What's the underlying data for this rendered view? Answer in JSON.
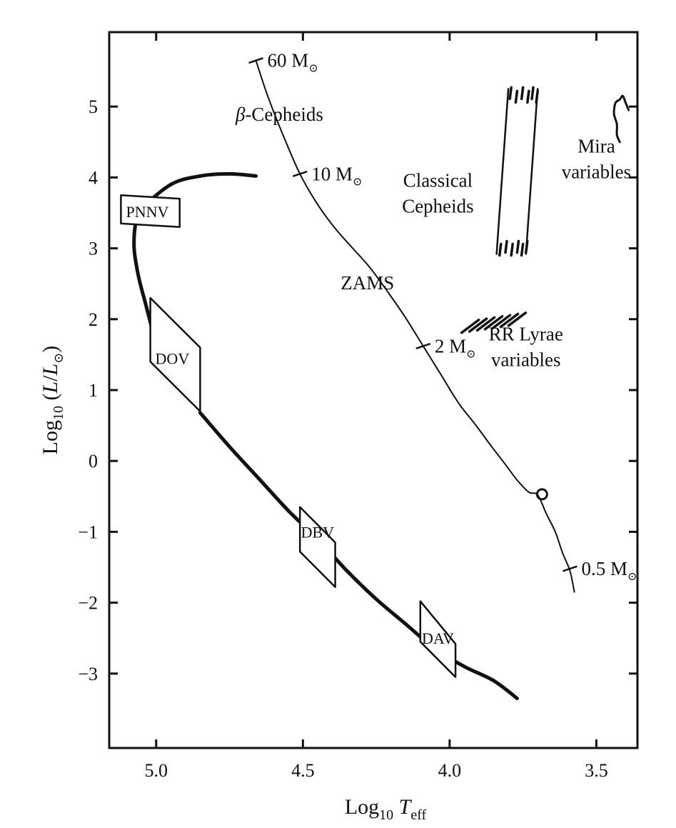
{
  "chart_data": {
    "type": "line",
    "title": "",
    "xlabel": {
      "base": "Log",
      "sub": "10",
      "var": "T",
      "varsub": "eff"
    },
    "ylabel": {
      "base": "Log",
      "sub": "10",
      "open": " (",
      "var": "L",
      "slash": "/",
      "var2": "L",
      "sun": "⊙",
      "close": ")"
    },
    "xlim": [
      5.16,
      3.36
    ],
    "ylim": [
      -4.05,
      6.05
    ],
    "x_ticks": [
      {
        "value": 5.0,
        "label": "5.0"
      },
      {
        "value": 4.5,
        "label": "4.5"
      },
      {
        "value": 4.0,
        "label": "4.0"
      },
      {
        "value": 3.5,
        "label": "3.5"
      }
    ],
    "y_ticks": [
      {
        "value": 5,
        "label": "5"
      },
      {
        "value": 4,
        "label": "4"
      },
      {
        "value": 3,
        "label": "3"
      },
      {
        "value": 2,
        "label": "2"
      },
      {
        "value": 1,
        "label": "1"
      },
      {
        "value": 0,
        "label": "0"
      },
      {
        "value": -1,
        "label": "−1"
      },
      {
        "value": -2,
        "label": "−2"
      },
      {
        "value": -3,
        "label": "−3"
      }
    ],
    "grid": false,
    "series": [
      {
        "id": "zams",
        "x": [
          4.66,
          4.62,
          4.57,
          4.51,
          4.45,
          4.39,
          4.33,
          4.27,
          4.21,
          4.15,
          4.09,
          4.03,
          3.97,
          3.91,
          3.86,
          3.81,
          3.77,
          3.73,
          3.7,
          3.67,
          3.64,
          3.615,
          3.59,
          3.575
        ],
        "y": [
          5.65,
          5.15,
          4.62,
          4.05,
          3.62,
          3.28,
          3.0,
          2.72,
          2.38,
          2.02,
          1.62,
          1.22,
          0.82,
          0.5,
          0.22,
          -0.05,
          -0.27,
          -0.44,
          -0.48,
          -0.75,
          -1.0,
          -1.3,
          -1.55,
          -1.85
        ]
      },
      {
        "id": "white-dwarf-track",
        "x": [
          4.66,
          4.75,
          4.85,
          4.95,
          5.05,
          5.07,
          5.075,
          5.06,
          5.035,
          5.01
        ],
        "y": [
          4.02,
          4.05,
          4.02,
          3.9,
          3.55,
          3.35,
          3.0,
          2.6,
          2.2,
          1.8
        ]
      },
      {
        "id": "cooling-track",
        "x": [
          4.85,
          4.75,
          4.65,
          4.55,
          4.45,
          4.35,
          4.25,
          4.15,
          4.05,
          3.95,
          3.85,
          3.77
        ],
        "y": [
          0.68,
          0.2,
          -0.25,
          -0.7,
          -1.1,
          -1.55,
          -1.95,
          -2.3,
          -2.65,
          -2.9,
          -3.1,
          -3.35
        ]
      }
    ],
    "zams_ticks": [
      {
        "x": 4.66,
        "y": 5.65,
        "label": "60 M",
        "sun": "⊙"
      },
      {
        "x": 4.51,
        "y": 4.05,
        "label": "10 M",
        "sun": "⊙"
      },
      {
        "x": 4.09,
        "y": 1.62,
        "label": "2 M",
        "sun": "⊙"
      },
      {
        "x": 3.59,
        "y": -1.52,
        "label": "0.5 M",
        "sun": "⊙"
      }
    ],
    "sun_marker": {
      "x": 3.685,
      "y": -0.47
    },
    "instability_boxes": [
      {
        "label": "PNNV",
        "polygon": [
          [
            5.12,
            3.75
          ],
          [
            4.92,
            3.7
          ],
          [
            4.92,
            3.3
          ],
          [
            5.12,
            3.35
          ]
        ],
        "label_at": [
          5.03,
          3.52
        ]
      },
      {
        "label": "DOV",
        "polygon": [
          [
            5.02,
            2.3
          ],
          [
            4.85,
            1.6
          ],
          [
            4.85,
            0.7
          ],
          [
            5.02,
            1.4
          ]
        ],
        "label_at": [
          4.945,
          1.45
        ]
      },
      {
        "label": "DBV",
        "polygon": [
          [
            4.51,
            -0.65
          ],
          [
            4.39,
            -1.15
          ],
          [
            4.39,
            -1.78
          ],
          [
            4.51,
            -1.28
          ]
        ],
        "label_at": [
          4.45,
          -1.0
        ]
      },
      {
        "label": "DAV",
        "polygon": [
          [
            4.1,
            -1.98
          ],
          [
            3.98,
            -2.58
          ],
          [
            3.98,
            -3.05
          ],
          [
            4.1,
            -2.55
          ]
        ],
        "label_at": [
          4.04,
          -2.5
        ]
      }
    ],
    "regions": {
      "classical_cepheids": {
        "outline": [
          [
            3.8,
            5.25
          ],
          [
            3.7,
            5.25
          ],
          [
            3.74,
            2.92
          ],
          [
            3.84,
            2.92
          ]
        ],
        "hatch_top": [
          3.79,
          3.77,
          3.75,
          3.73,
          3.715,
          3.7
        ],
        "hatch_bottom": [
          3.83,
          3.81,
          3.79,
          3.77,
          3.755,
          3.74
        ]
      },
      "rr_lyrae": {
        "from": [
          3.93,
          1.9
        ],
        "to": [
          3.77,
          2.0
        ],
        "count": 7
      },
      "mira": {
        "x": [
          3.39,
          3.4,
          3.41,
          3.42,
          3.435,
          3.44,
          3.43,
          3.43,
          3.42
        ],
        "y": [
          4.95,
          5.05,
          5.15,
          5.1,
          5.05,
          4.9,
          4.75,
          4.6,
          4.5
        ]
      }
    },
    "annotations": [
      {
        "id": "beta-cepheids",
        "lines": [
          "β-Cepheids"
        ],
        "x": 4.58,
        "y": 4.8
      },
      {
        "id": "classical-cepheids",
        "lines": [
          "Classical",
          "Cepheids"
        ],
        "x": 4.04,
        "y": 3.87
      },
      {
        "id": "mira",
        "lines": [
          "Mira",
          "variables"
        ],
        "x": 3.5,
        "y": 4.35
      },
      {
        "id": "zams",
        "lines": [
          "ZAMS"
        ],
        "x": 4.28,
        "y": 2.42
      },
      {
        "id": "rr-lyrae",
        "lines": [
          "RR Lyrae",
          "variables"
        ],
        "x": 3.74,
        "y": 1.7
      }
    ]
  }
}
